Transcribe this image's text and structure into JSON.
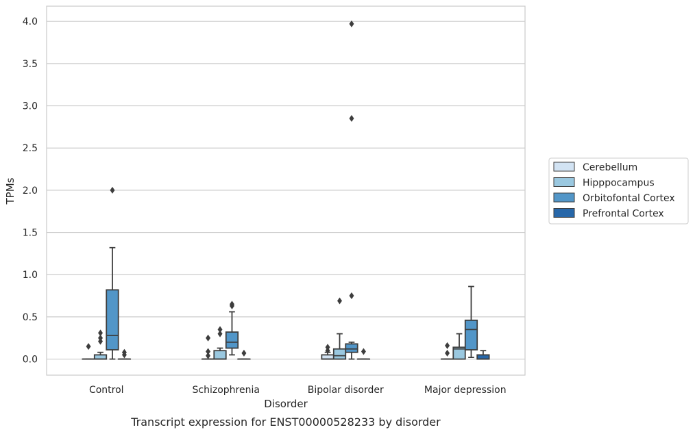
{
  "chart_data": {
    "type": "box",
    "caption": "Transcript expression for ENST00000528233 by disorder",
    "xlabel": "Disorder",
    "ylabel": "TPMs",
    "ylim": [
      -0.19,
      4.18
    ],
    "yticks": [
      0.0,
      0.5,
      1.0,
      1.5,
      2.0,
      2.5,
      3.0,
      3.5,
      4.0
    ],
    "ytick_labels": [
      "0.0",
      "0.5",
      "1.0",
      "1.5",
      "2.0",
      "2.5",
      "3.0",
      "3.5",
      "4.0"
    ],
    "grid": "horizontal",
    "legend_position": "right",
    "categories": [
      "Control",
      "Schizophrenia",
      "Bipolar disorder",
      "Major depression"
    ],
    "series": [
      {
        "name": "Cerebellum",
        "color": "#d2e3f3",
        "boxes": [
          {
            "min": 0.0,
            "q1": 0.0,
            "median": 0.0,
            "q3": 0.0,
            "max": 0.0,
            "outliers": [
              0.15
            ]
          },
          {
            "min": 0.0,
            "q1": 0.0,
            "median": 0.0,
            "q3": 0.0,
            "max": 0.0,
            "outliers": [
              0.04,
              0.09,
              0.25
            ]
          },
          {
            "min": 0.0,
            "q1": 0.0,
            "median": 0.0,
            "q3": 0.05,
            "max": 0.08,
            "outliers": [
              0.1,
              0.14
            ]
          },
          {
            "min": 0.0,
            "q1": 0.0,
            "median": 0.0,
            "q3": 0.0,
            "max": 0.0,
            "outliers": [
              0.07,
              0.16
            ]
          }
        ]
      },
      {
        "name": "Hipppocampus",
        "color": "#9ac8e0",
        "boxes": [
          {
            "min": 0.0,
            "q1": 0.0,
            "median": 0.0,
            "q3": 0.05,
            "max": 0.08,
            "outliers": [
              0.21,
              0.25,
              0.31
            ]
          },
          {
            "min": 0.0,
            "q1": 0.0,
            "median": 0.0,
            "q3": 0.1,
            "max": 0.13,
            "outliers": [
              0.3,
              0.35
            ]
          },
          {
            "min": 0.0,
            "q1": 0.0,
            "median": 0.04,
            "q3": 0.12,
            "max": 0.3,
            "outliers": [
              0.69
            ]
          },
          {
            "min": 0.0,
            "q1": 0.0,
            "median": 0.12,
            "q3": 0.14,
            "max": 0.3,
            "outliers": []
          }
        ]
      },
      {
        "name": "Orbitofontal Cortex",
        "color": "#5296c8",
        "boxes": [
          {
            "min": 0.0,
            "q1": 0.11,
            "median": 0.28,
            "q3": 0.82,
            "max": 1.32,
            "outliers": [
              2.0
            ]
          },
          {
            "min": 0.05,
            "q1": 0.13,
            "median": 0.2,
            "q3": 0.32,
            "max": 0.56,
            "outliers": [
              0.63,
              0.65
            ]
          },
          {
            "min": 0.0,
            "q1": 0.08,
            "median": 0.12,
            "q3": 0.18,
            "max": 0.2,
            "outliers": [
              0.75,
              2.85,
              3.97
            ]
          },
          {
            "min": 0.02,
            "q1": 0.11,
            "median": 0.35,
            "q3": 0.46,
            "max": 0.86,
            "outliers": []
          }
        ]
      },
      {
        "name": "Prefrontal Cortex",
        "color": "#2767a9",
        "boxes": [
          {
            "min": 0.0,
            "q1": 0.0,
            "median": 0.0,
            "q3": 0.0,
            "max": 0.0,
            "outliers": [
              0.05,
              0.08
            ]
          },
          {
            "min": 0.0,
            "q1": 0.0,
            "median": 0.0,
            "q3": 0.0,
            "max": 0.0,
            "outliers": [
              0.07
            ]
          },
          {
            "min": 0.0,
            "q1": 0.0,
            "median": 0.0,
            "q3": 0.0,
            "max": 0.0,
            "outliers": [
              0.09
            ]
          },
          {
            "min": 0.0,
            "q1": 0.0,
            "median": 0.0,
            "q3": 0.05,
            "max": 0.1,
            "outliers": []
          }
        ]
      }
    ]
  }
}
